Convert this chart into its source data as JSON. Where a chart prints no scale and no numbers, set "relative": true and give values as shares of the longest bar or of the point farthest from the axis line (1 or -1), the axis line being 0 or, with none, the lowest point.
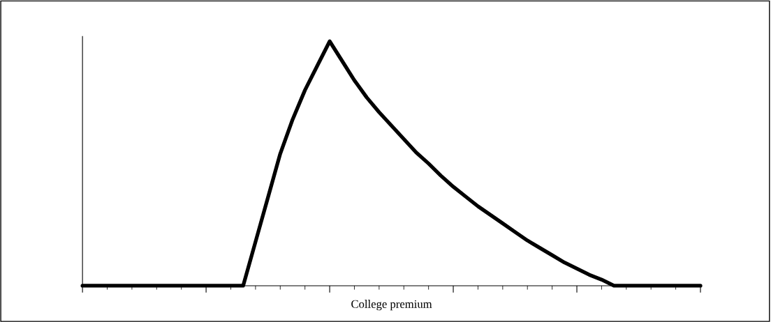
{
  "chart_data": {
    "type": "line",
    "relative": true,
    "xlabel": "College premium",
    "categories": [
      null,
      null,
      null,
      null,
      null,
      null,
      null,
      null,
      null,
      null,
      null,
      null,
      null,
      null,
      null,
      null,
      null,
      null,
      null,
      null,
      null,
      null,
      null,
      null,
      null,
      null,
      null,
      null,
      null,
      null,
      null,
      null,
      null,
      null,
      null,
      null,
      null,
      null,
      null,
      null,
      null,
      null,
      null,
      null,
      null,
      null,
      null,
      null,
      null,
      null,
      null
    ],
    "series": [
      {
        "color": "#000000",
        "values": [
          0,
          0,
          0,
          0,
          0,
          0,
          0,
          0,
          0,
          0,
          0,
          0,
          0,
          0,
          0.18,
          0.36,
          0.54,
          0.68,
          0.8,
          0.9,
          1,
          0.92,
          0.84,
          0.77,
          0.71,
          0.655,
          0.6,
          0.545,
          0.5,
          0.45,
          0.405,
          0.365,
          0.325,
          0.29,
          0.255,
          0.22,
          0.185,
          0.155,
          0.125,
          0.095,
          0.07,
          0.045,
          0.025,
          0,
          0,
          0,
          0,
          0,
          0,
          0,
          0
        ]
      }
    ],
    "marker": "none",
    "line_style": "solid",
    "grid": false,
    "legend": false
  }
}
